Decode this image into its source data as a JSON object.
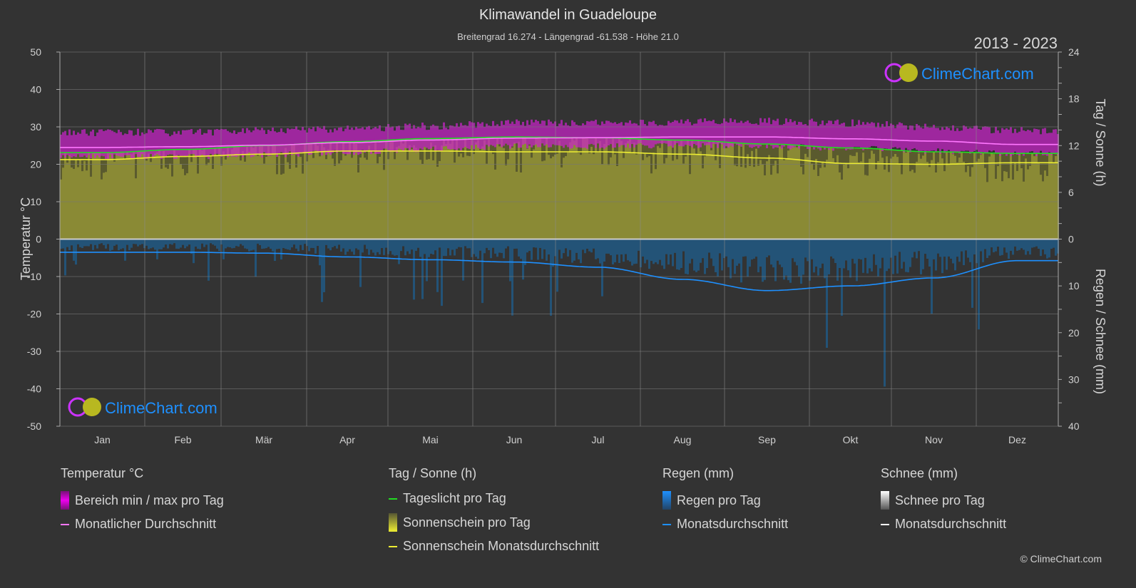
{
  "header": {
    "title": "Klimawandel in Guadeloupe",
    "subtitle": "Breitengrad 16.274 - Längengrad -61.538 - Höhe 21.0",
    "years": "2013 - 2023"
  },
  "logo_text": "ClimeChart.com",
  "copyright": "© ClimeChart.com",
  "colors": {
    "background": "#333333",
    "temp_range": "#cc22cc",
    "temp_mean": "#ff77ff",
    "daylight": "#22dd22",
    "sunshine_fill": "#8a8a35",
    "sunshine_mean": "#eeee33",
    "rain_fill": "#1f5f8f",
    "rain_mean": "#1e90ff",
    "snow_mean": "#ffffff",
    "logo_blue": "#1e90ff"
  },
  "chart_data": {
    "type": "area",
    "categories": [
      "Jan",
      "Feb",
      "Mär",
      "Apr",
      "Mai",
      "Jun",
      "Jul",
      "Aug",
      "Sep",
      "Okt",
      "Nov",
      "Dez"
    ],
    "left_axis": {
      "label": "Temperatur °C",
      "range": [
        -50,
        50
      ],
      "ticks": [
        50,
        40,
        30,
        20,
        10,
        0,
        -10,
        -20,
        -30,
        -40,
        -50
      ]
    },
    "right_axis_top": {
      "label": "Tag / Sonne (h)",
      "range": [
        0,
        24
      ],
      "ticks": [
        24,
        18,
        12,
        6,
        0
      ]
    },
    "right_axis_bottom": {
      "label": "Regen / Schnee (mm)",
      "range": [
        0,
        40
      ],
      "ticks": [
        0,
        10,
        20,
        30,
        40
      ]
    },
    "grid": true,
    "series": [
      {
        "name": "Monatlicher Durchschnitt",
        "unit": "°C",
        "values": [
          24.5,
          24.7,
          25.1,
          25.8,
          26.5,
          27.0,
          27.1,
          27.3,
          27.3,
          26.8,
          26.2,
          25.3
        ]
      },
      {
        "name": "Bereich min / max pro Tag",
        "unit": "°C",
        "min": [
          22.0,
          22.0,
          22.5,
          23.2,
          24.0,
          24.8,
          24.8,
          25.0,
          24.8,
          24.2,
          23.5,
          22.8
        ],
        "max": [
          28.5,
          28.5,
          29.0,
          29.5,
          30.2,
          31.0,
          31.0,
          31.3,
          31.5,
          31.0,
          30.0,
          29.0
        ]
      },
      {
        "name": "Tageslicht pro Tag",
        "unit": "h",
        "values": [
          11.1,
          11.5,
          12.0,
          12.5,
          12.9,
          13.1,
          13.0,
          12.7,
          12.2,
          11.7,
          11.2,
          11.0
        ]
      },
      {
        "name": "Sonnenschein Monatsdurchschnitt",
        "unit": "h",
        "values": [
          10.2,
          10.6,
          10.9,
          11.3,
          11.3,
          11.2,
          11.2,
          10.9,
          10.4,
          9.7,
          9.6,
          9.8
        ]
      },
      {
        "name": "Monatsdurchschnitt",
        "unit": "mm",
        "values": [
          2.8,
          2.8,
          3.0,
          3.8,
          4.4,
          4.9,
          6.0,
          8.6,
          11.0,
          10.0,
          8.3,
          4.6
        ]
      }
    ]
  },
  "legend": {
    "groups": [
      {
        "title": "Temperatur °C",
        "items": [
          "Bereich min / max pro Tag",
          "Monatlicher Durchschnitt"
        ]
      },
      {
        "title": "Tag / Sonne (h)",
        "items": [
          "Tageslicht pro Tag",
          "Sonnenschein pro Tag",
          "Sonnenschein Monatsdurchschnitt"
        ]
      },
      {
        "title": "Regen (mm)",
        "items": [
          "Regen pro Tag",
          "Monatsdurchschnitt"
        ]
      },
      {
        "title": "Schnee (mm)",
        "items": [
          "Schnee pro Tag",
          "Monatsdurchschnitt"
        ]
      }
    ]
  }
}
